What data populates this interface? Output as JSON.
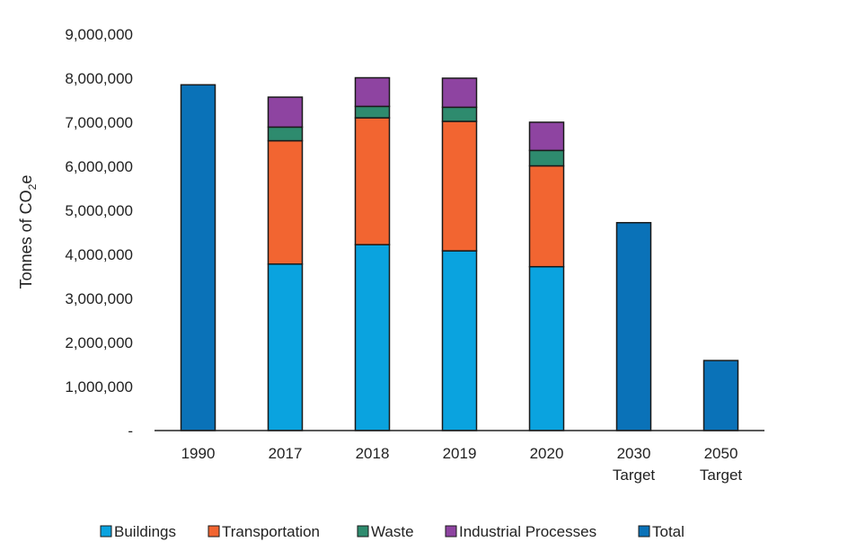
{
  "chart_data": {
    "type": "bar",
    "stacked": true,
    "categories": [
      [
        "1990"
      ],
      [
        "2017"
      ],
      [
        "2018"
      ],
      [
        "2019"
      ],
      [
        "2020"
      ],
      [
        "2030",
        "Target"
      ],
      [
        "2050",
        "Target"
      ]
    ],
    "ylabel": {
      "main": "Tonnes of CO",
      "sub": "2",
      "tail": "e"
    },
    "ylim": [
      0,
      9000000
    ],
    "yticks": [
      {
        "value": 0,
        "label": "-"
      },
      {
        "value": 1000000,
        "label": "1,000,000"
      },
      {
        "value": 2000000,
        "label": "2,000,000"
      },
      {
        "value": 3000000,
        "label": "3,000,000"
      },
      {
        "value": 4000000,
        "label": "4,000,000"
      },
      {
        "value": 5000000,
        "label": "5,000,000"
      },
      {
        "value": 6000000,
        "label": "6,000,000"
      },
      {
        "value": 7000000,
        "label": "7,000,000"
      },
      {
        "value": 8000000,
        "label": "8,000,000"
      },
      {
        "value": 9000000,
        "label": "9,000,000"
      }
    ],
    "grid": false,
    "legend_position": "bottom",
    "series": [
      {
        "name": "Buildings",
        "color": "#0AA3DF",
        "values": [
          0,
          3780000,
          4220000,
          4080000,
          3720000,
          0,
          0
        ]
      },
      {
        "name": "Transportation",
        "color": "#F26531",
        "values": [
          0,
          2800000,
          2880000,
          2940000,
          2290000,
          0,
          0
        ]
      },
      {
        "name": "Waste",
        "color": "#2E8B6E",
        "values": [
          0,
          310000,
          260000,
          320000,
          350000,
          0,
          0
        ]
      },
      {
        "name": "Industrial Processes",
        "color": "#8E44A1",
        "values": [
          0,
          680000,
          650000,
          660000,
          640000,
          0,
          0
        ]
      },
      {
        "name": "Total",
        "color": "#0A72B8",
        "values": [
          7850000,
          0,
          0,
          0,
          0,
          4720000,
          1590000
        ]
      }
    ]
  }
}
